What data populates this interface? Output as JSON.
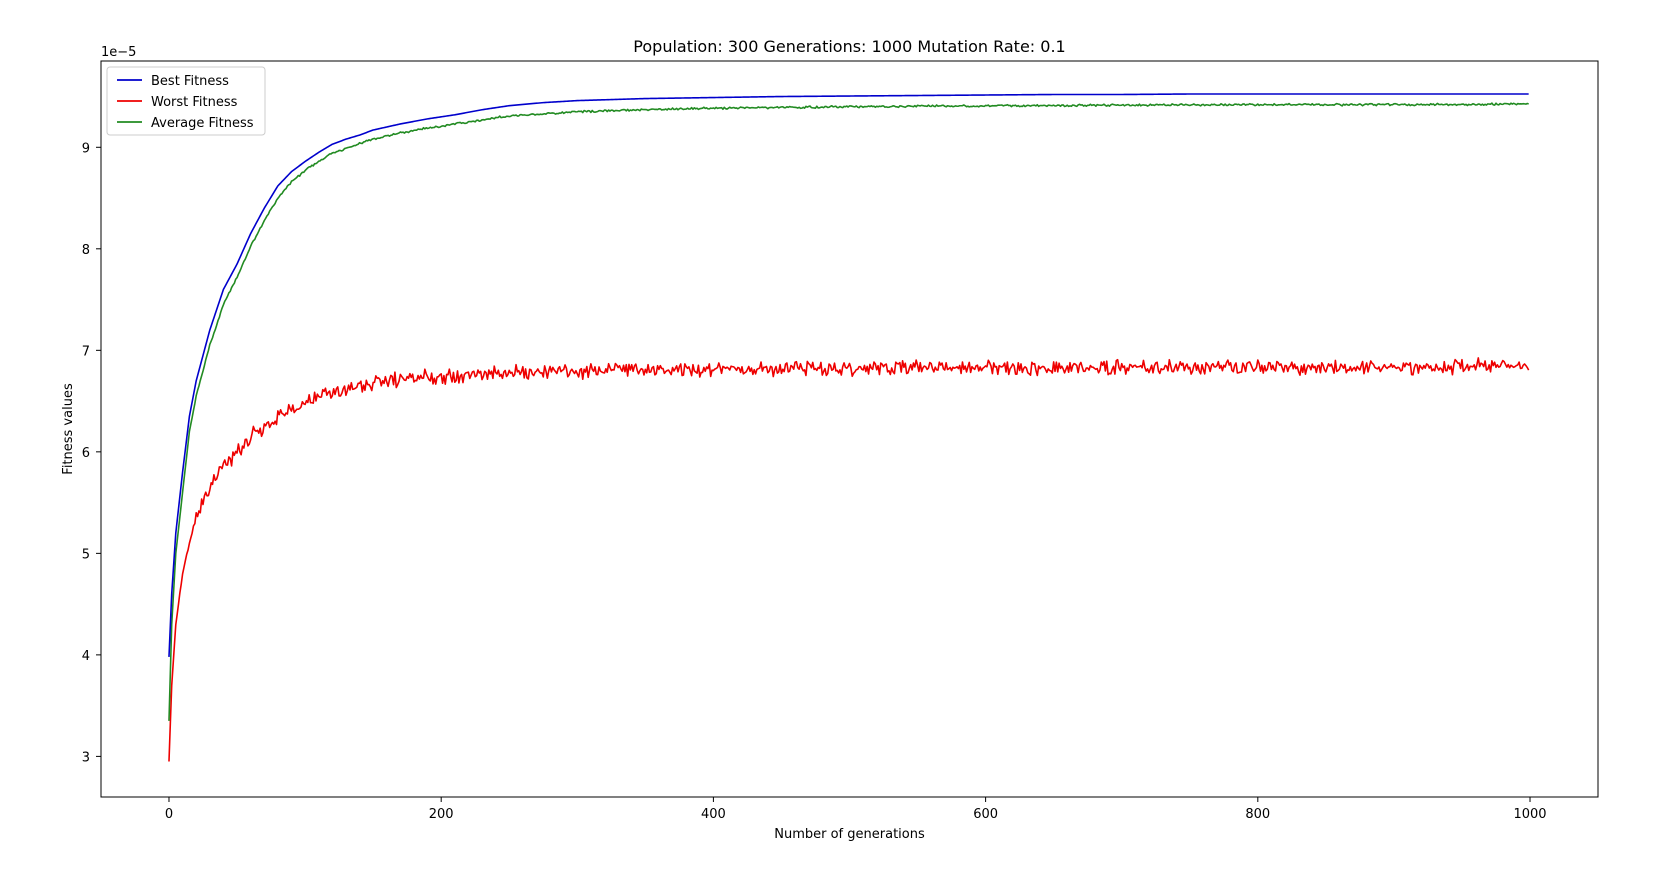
{
  "chart_data": {
    "type": "line",
    "title": "Population: 300 Generations: 1000 Mutation Rate: 0.1",
    "xlabel": "Number of generations",
    "ylabel": "Fitness values",
    "y_offset_label": "1e−5",
    "xlim": [
      -49.95,
      1049.95
    ],
    "ylim": [
      2.6,
      9.85
    ],
    "x_ticks": [
      0,
      200,
      400,
      600,
      800,
      1000
    ],
    "y_ticks": [
      3,
      4,
      5,
      6,
      7,
      8,
      9
    ],
    "grid": false,
    "legend_position": "top-left",
    "series": [
      {
        "name": "Best Fitness",
        "color": "#0000cc",
        "noise": 0.0,
        "x": [
          0,
          2,
          5,
          10,
          15,
          20,
          25,
          30,
          40,
          50,
          60,
          70,
          80,
          90,
          100,
          110,
          120,
          130,
          140,
          150,
          170,
          190,
          210,
          230,
          250,
          275,
          300,
          350,
          400,
          450,
          500,
          550,
          600,
          650,
          700,
          750,
          800,
          850,
          900,
          950,
          999
        ],
        "values": [
          3.98,
          4.6,
          5.2,
          5.8,
          6.35,
          6.7,
          6.95,
          7.2,
          7.6,
          7.85,
          8.15,
          8.4,
          8.62,
          8.76,
          8.86,
          8.95,
          9.03,
          9.08,
          9.12,
          9.17,
          9.23,
          9.28,
          9.32,
          9.37,
          9.41,
          9.44,
          9.46,
          9.48,
          9.49,
          9.5,
          9.505,
          9.51,
          9.515,
          9.52,
          9.52,
          9.525,
          9.525,
          9.525,
          9.525,
          9.525,
          9.525
        ]
      },
      {
        "name": "Worst Fitness",
        "color": "#ee0000",
        "noise": 0.055,
        "x": [
          0,
          2,
          5,
          10,
          15,
          20,
          25,
          30,
          40,
          50,
          60,
          70,
          80,
          90,
          100,
          110,
          120,
          140,
          160,
          180,
          200,
          250,
          300,
          350,
          400,
          500,
          600,
          700,
          800,
          900,
          999
        ],
        "values": [
          2.95,
          3.7,
          4.3,
          4.8,
          5.1,
          5.35,
          5.5,
          5.65,
          5.85,
          6.0,
          6.15,
          6.25,
          6.35,
          6.42,
          6.48,
          6.54,
          6.58,
          6.65,
          6.7,
          6.73,
          6.75,
          6.78,
          6.8,
          6.81,
          6.82,
          6.83,
          6.83,
          6.83,
          6.83,
          6.83,
          6.85
        ]
      },
      {
        "name": "Average Fitness",
        "color": "#228b22",
        "noise": 0.008,
        "x": [
          0,
          2,
          5,
          10,
          15,
          20,
          25,
          30,
          40,
          50,
          60,
          70,
          80,
          90,
          100,
          110,
          120,
          130,
          140,
          150,
          170,
          190,
          210,
          230,
          250,
          275,
          300,
          350,
          400,
          500,
          600,
          700,
          800,
          900,
          999
        ],
        "values": [
          3.35,
          4.3,
          5.0,
          5.6,
          6.2,
          6.55,
          6.8,
          7.05,
          7.45,
          7.72,
          8.02,
          8.28,
          8.5,
          8.66,
          8.77,
          8.86,
          8.94,
          8.99,
          9.04,
          9.08,
          9.14,
          9.19,
          9.23,
          9.27,
          9.31,
          9.33,
          9.35,
          9.37,
          9.385,
          9.4,
          9.41,
          9.415,
          9.42,
          9.42,
          9.425
        ]
      }
    ]
  }
}
